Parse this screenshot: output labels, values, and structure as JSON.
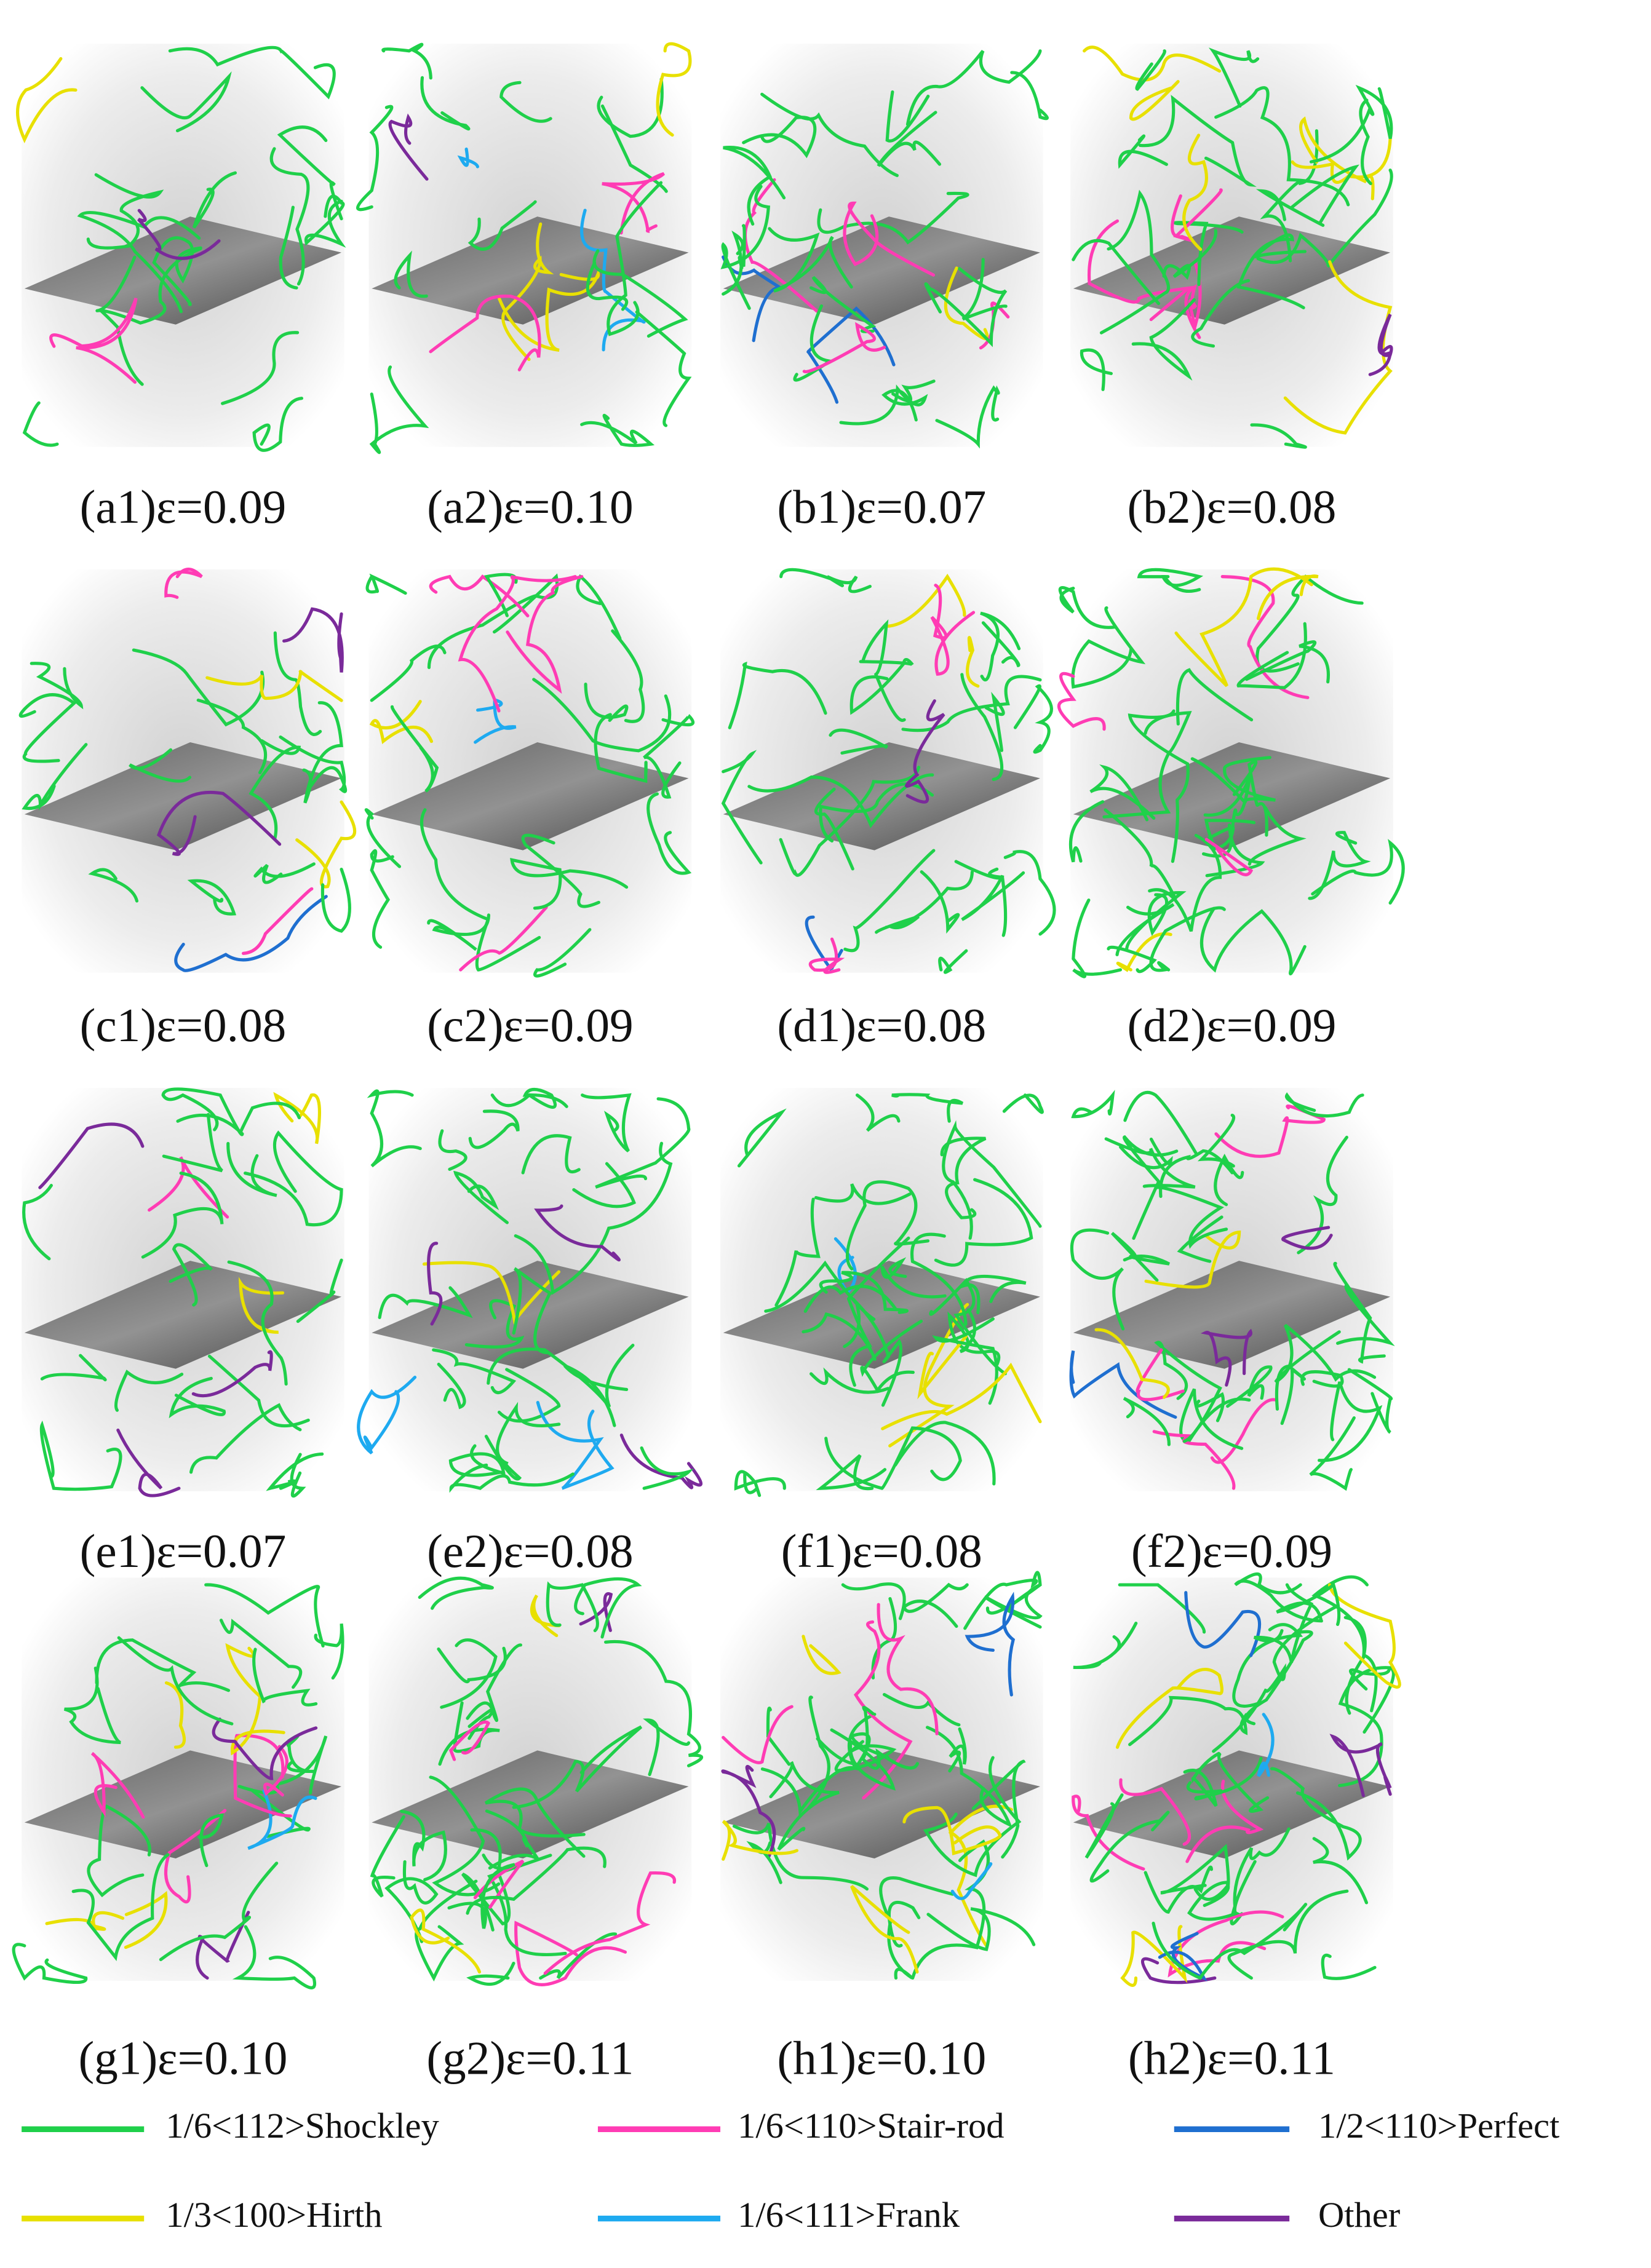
{
  "panels": [
    {
      "label": "(a1)ε=0.09"
    },
    {
      "label": "(a2)ε=0.10"
    },
    {
      "label": "(b1)ε=0.07"
    },
    {
      "label": "(b2)ε=0.08"
    },
    {
      "label": "(c1)ε=0.08"
    },
    {
      "label": "(c2)ε=0.09"
    },
    {
      "label": "(d1)ε=0.08"
    },
    {
      "label": "(d2)ε=0.09"
    },
    {
      "label": "(e1)ε=0.07"
    },
    {
      "label": "(e2)ε=0.08"
    },
    {
      "label": "(f1)ε=0.08"
    },
    {
      "label": "(f2)ε=0.09"
    },
    {
      "label": "(g1)ε=0.10"
    },
    {
      "label": "(g2)ε=0.11"
    },
    {
      "label": "(h1)ε=0.10"
    },
    {
      "label": "(h2)ε=0.11"
    }
  ],
  "legend": [
    {
      "name": "1/6<112>Shockley",
      "color": "#1fd04a"
    },
    {
      "name": "1/6<110>Stair-rod",
      "color": "#ff3cb4"
    },
    {
      "name": "1/2<110>Perfect",
      "color": "#1f6fd0"
    },
    {
      "name": "1/3<100>Hirth",
      "color": "#e8e000"
    },
    {
      "name": "1/6<111>Frank",
      "color": "#1eaaf0"
    },
    {
      "name": "Other",
      "color": "#7a2a9a"
    }
  ]
}
